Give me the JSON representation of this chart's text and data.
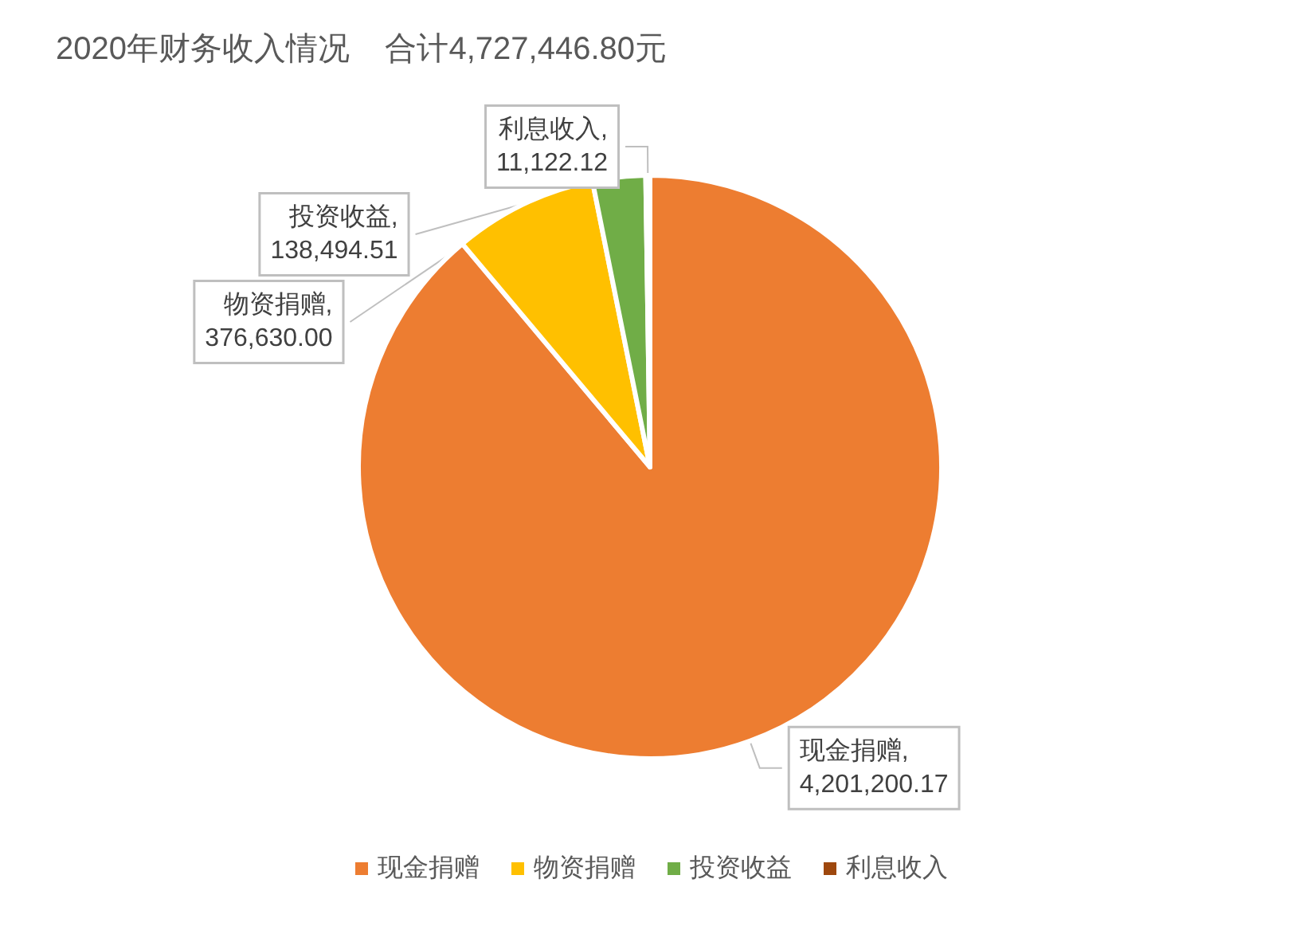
{
  "chart_data": {
    "type": "pie",
    "title": "2020年财务收入情况    合计4,727,446.80元",
    "categories": [
      "现金捐赠",
      "物资捐赠",
      "投资收益",
      "利息收入"
    ],
    "values": [
      4201200.17,
      376630.0,
      138494.51,
      11122.12
    ],
    "value_labels": [
      "现金捐赠,\n4,201,200.17",
      "物资捐赠,\n376,630.00",
      "投资收益,\n138,494.51",
      "利息收入,\n11,122.12"
    ],
    "colors": [
      "#ed7d31",
      "#ffc000",
      "#70ad47",
      "#9e480e"
    ],
    "legend": "bottom"
  }
}
